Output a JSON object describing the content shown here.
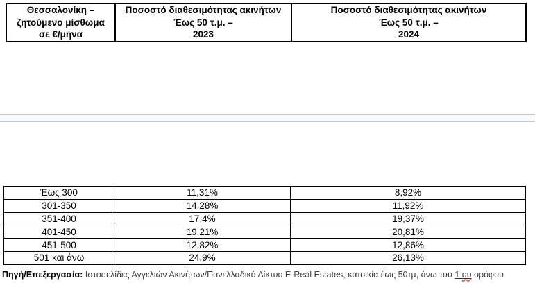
{
  "header_table": {
    "cells": [
      "Θεσσαλονίκη –\nζητούμενο μίσθωμα\nσε €/μήνα",
      "Ποσοστό διαθεσιμότητας ακινήτων\nΈως 50 τ.μ. –\n2023",
      "Ποσοστό διαθεσιμότητας ακινήτων\nΈως 50 τ.μ. –\n2024"
    ]
  },
  "availability_table": {
    "rows": [
      {
        "range": "Έως 300",
        "y2023": "11,31%",
        "y2024": "8,92%"
      },
      {
        "range": "301-350",
        "y2023": "14,28%",
        "y2024": "11,92%"
      },
      {
        "range": "351-400",
        "y2023": "17,4%",
        "y2024": "19,37%"
      },
      {
        "range": "401-450",
        "y2023": "19,21%",
        "y2024": "20,81%"
      },
      {
        "range": "451-500",
        "y2023": "12,82%",
        "y2024": "12,86%"
      },
      {
        "range": "501 και άνω",
        "y2023": "24,9%",
        "y2024": "26,13%"
      }
    ]
  },
  "footer": {
    "label": "Πηγή/Επεξεργασία:",
    "body": " Ιστοσελίδες Αγγελιών Ακινήτων/Πανελλαδικό Δίκτυο E-Real Estates, κατοικία έως 50τμ, άνω του ",
    "underlined": "1 ",
    "misspelled": "ου",
    "rest": " ορόφου"
  },
  "chart_data": {
    "type": "table",
    "categories": [
      "Έως 300",
      "301-350",
      "351-400",
      "401-450",
      "451-500",
      "501 και άνω"
    ],
    "series": [
      {
        "name": "2023",
        "values": [
          11.31,
          14.28,
          17.4,
          19.21,
          12.82,
          24.9
        ]
      },
      {
        "name": "2024",
        "values": [
          8.92,
          11.92,
          19.37,
          20.81,
          12.86,
          26.13
        ]
      }
    ]
  },
  "colors": {
    "table_border": "#000000",
    "divider_fill": "#fafbfc",
    "divider_border": "#c6c9cd",
    "footer_text": "#404040",
    "spellcheck_underline": "#e03131"
  }
}
